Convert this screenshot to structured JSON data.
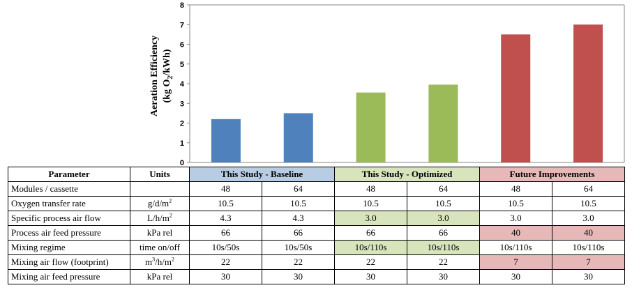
{
  "chart_data": {
    "type": "bar",
    "ylabel_line1": "Aeration Efficiency",
    "ylabel_line2_pre": "(kg O",
    "ylabel_line2_sub": "2",
    "ylabel_line2_post": "/kWh)",
    "ylim": [
      0,
      8
    ],
    "yticks": [
      "0",
      "1",
      "2",
      "3",
      "4",
      "5",
      "6",
      "7",
      "8"
    ],
    "values": [
      2.2,
      2.5,
      3.55,
      3.95,
      6.5,
      7.0
    ],
    "colors": [
      "#4f81bd",
      "#4f81bd",
      "#9bbb59",
      "#9bbb59",
      "#c0504d",
      "#c0504d"
    ],
    "grid": false
  },
  "table": {
    "header": {
      "parameter": "Parameter",
      "units": "Units",
      "groups": [
        "This Study - Baseline",
        "This Study - Optimized",
        "Future Improvements"
      ]
    },
    "rows": [
      {
        "parameter": "Modules / cassette",
        "unit": "",
        "values": [
          "48",
          "64",
          "48",
          "64",
          "48",
          "64"
        ],
        "highlight": [
          "",
          "",
          "",
          "",
          "",
          ""
        ]
      },
      {
        "parameter": "Oxygen transfer rate",
        "unit": "g/d/m",
        "unit_sup": "2",
        "values": [
          "10.5",
          "10.5",
          "10.5",
          "10.5",
          "10.5",
          "10.5"
        ],
        "highlight": [
          "",
          "",
          "",
          "",
          "",
          ""
        ]
      },
      {
        "parameter": "Specific process air flow",
        "unit": "L/h/m",
        "unit_sup": "2",
        "values": [
          "4.3",
          "4.3",
          "3.0",
          "3.0",
          "3.0",
          "3.0"
        ],
        "highlight": [
          "",
          "",
          "green",
          "green",
          "",
          ""
        ]
      },
      {
        "parameter": "Process air feed pressure",
        "unit": "kPa rel",
        "values": [
          "66",
          "66",
          "66",
          "66",
          "40",
          "40"
        ],
        "highlight": [
          "",
          "",
          "",
          "",
          "red",
          "red"
        ]
      },
      {
        "parameter": "Mixing regime",
        "unit": "time on/off",
        "values": [
          "10s/50s",
          "10s/50s",
          "10s/110s",
          "10s/110s",
          "10s/110s",
          "10s/110s"
        ],
        "highlight": [
          "",
          "",
          "green",
          "green",
          "",
          ""
        ]
      },
      {
        "parameter": "Mixing air flow  (footprint)",
        "unit": "m",
        "unit_sup": "3",
        "unit_post": "/h/m",
        "unit_sup2": "2",
        "values": [
          "22",
          "22",
          "22",
          "22",
          "7",
          "7"
        ],
        "highlight": [
          "",
          "",
          "",
          "",
          "red",
          "red"
        ]
      },
      {
        "parameter": "Mixing air feed pressure",
        "unit": "kPa rel",
        "values": [
          "30",
          "30",
          "30",
          "30",
          "30",
          "30"
        ],
        "highlight": [
          "",
          "",
          "",
          "",
          "",
          ""
        ]
      }
    ]
  }
}
